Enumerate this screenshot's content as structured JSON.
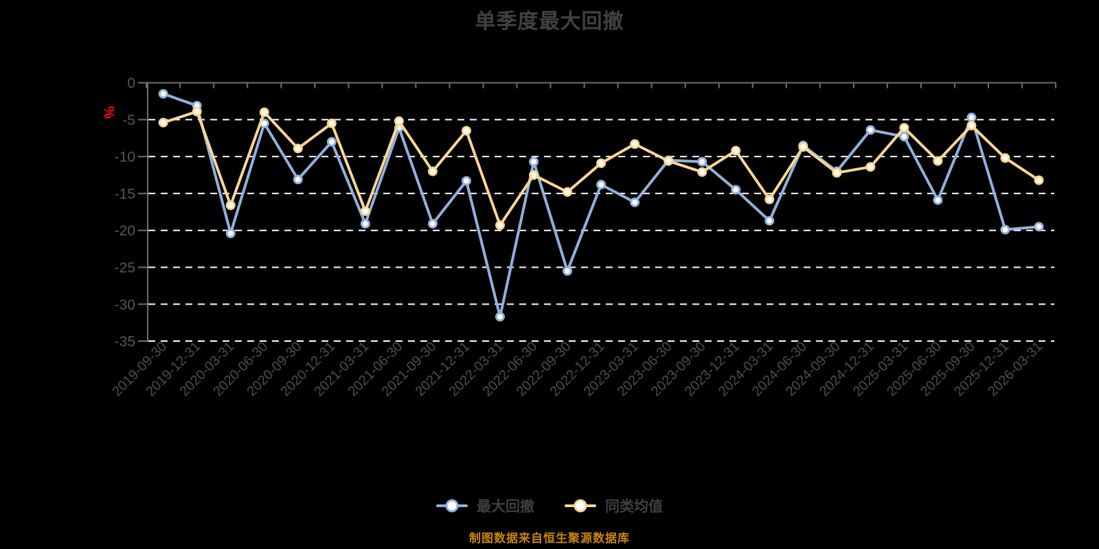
{
  "title": "单季度最大回撤",
  "footer": "制图数据来自恒生聚源数据库",
  "legend": [
    {
      "label": "最大回撤",
      "color": "#92B0DD"
    },
    {
      "label": "同类均值",
      "color": "#F8D795"
    }
  ],
  "colors": {
    "background": "#000000",
    "grid": "#FFFFFF",
    "axis": "#707070",
    "tick_label": "#565656",
    "x_label": "#4D4D4D",
    "title": "#414141",
    "footer": "#C9860B",
    "unit": "#FE0606",
    "series_1": "#92B0DD",
    "series_2": "#F8D795",
    "marker_fill": "#FFFFFF"
  },
  "chart_data": {
    "type": "line",
    "title": "单季度最大回撤",
    "xlabel": "",
    "ylabel": "%",
    "ylim": [
      -35,
      0
    ],
    "yticks": [
      0,
      -5,
      -10,
      -15,
      -20,
      -25,
      -30,
      -35
    ],
    "grid": "horizontal-dashed",
    "legend_position": "bottom",
    "marker": "circle-white-fill",
    "source_note": "制图数据来自恒生聚源数据库",
    "categories": [
      "2019-09-30",
      "2019-12-31",
      "2020-03-31",
      "2020-06-30",
      "2020-09-30",
      "2020-12-31",
      "2021-03-31",
      "2021-06-30",
      "2021-09-30",
      "2021-12-31",
      "2022-03-31",
      "2022-06-30",
      "2022-09-30",
      "2022-12-31",
      "2023-03-31",
      "2023-06-30",
      "2023-09-30",
      "2023-12-31",
      "2024-03-31",
      "2024-06-30",
      "2024-09-30",
      "2024-12-31",
      "2025-03-31",
      "2025-06-30",
      "2025-09-30",
      "2025-12-31",
      "2026-03-31"
    ],
    "series": [
      {
        "name": "最大回撤",
        "color": "#92B0DD",
        "values": [
          -1.5,
          -3.1,
          -20.4,
          -5.5,
          -13.1,
          -8.0,
          -19.1,
          -6.1,
          -19.1,
          -13.3,
          -31.7,
          -10.7,
          -25.5,
          -13.8,
          -16.2,
          -10.5,
          -10.7,
          -14.5,
          -18.7,
          -8.5,
          -12.0,
          -6.4,
          -7.3,
          -15.9,
          -4.7,
          -19.9,
          -19.5
        ]
      },
      {
        "name": "同类均值",
        "color": "#F8D795",
        "values": [
          -5.4,
          -3.9,
          -16.6,
          -4.0,
          -8.9,
          -5.5,
          -17.4,
          -5.2,
          -12.0,
          -6.5,
          -19.3,
          -12.5,
          -14.8,
          -10.9,
          -8.3,
          -10.6,
          -12.1,
          -9.2,
          -15.8,
          -8.7,
          -12.2,
          -11.4,
          -6.1,
          -10.6,
          -5.8,
          -10.2,
          -13.2
        ]
      }
    ]
  }
}
